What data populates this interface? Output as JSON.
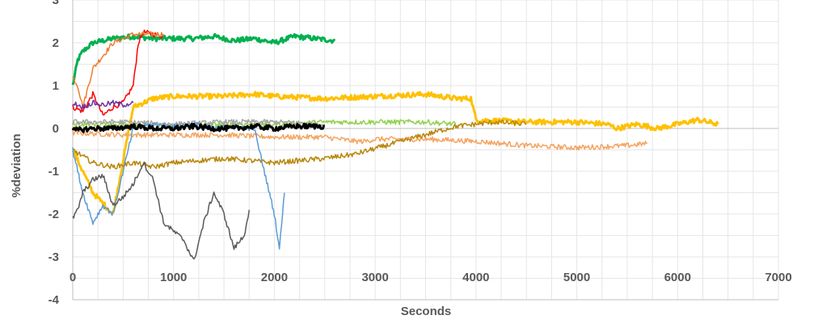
{
  "chart_data": {
    "type": "line",
    "title": "",
    "xlabel": "Seconds",
    "ylabel": "%deviation",
    "xlim": [
      0,
      7000
    ],
    "ylim": [
      -4,
      3
    ],
    "xticks": [
      0,
      1000,
      2000,
      3000,
      4000,
      5000,
      6000,
      7000
    ],
    "yticks": [
      -4,
      -3,
      -2,
      -1,
      0,
      1,
      2,
      3
    ],
    "grid": true,
    "legend": "none",
    "series": [
      {
        "color": "#00B050",
        "x": [
          0,
          50,
          100,
          200,
          400,
          600,
          800,
          900,
          1000,
          1200,
          1400,
          1600,
          1800,
          2000,
          2200,
          2400,
          2600
        ],
        "y": [
          1.0,
          1.6,
          1.8,
          2.0,
          2.1,
          2.15,
          2.1,
          2.1,
          2.1,
          2.1,
          2.15,
          2.05,
          2.1,
          2.0,
          2.15,
          2.1,
          2.05
        ]
      },
      {
        "color": "#FF0000",
        "x": [
          0,
          100,
          200,
          300,
          400,
          500,
          600,
          650,
          700,
          800,
          900
        ],
        "y": [
          0.5,
          0.4,
          0.8,
          0.3,
          0.5,
          0.6,
          1.0,
          2.0,
          2.25,
          2.2,
          2.15
        ]
      },
      {
        "color": "#ED7D31",
        "x": [
          0,
          50,
          100,
          200,
          400,
          500,
          600,
          700,
          900
        ],
        "y": [
          1.2,
          1.0,
          0.5,
          1.4,
          2.0,
          2.1,
          2.2,
          2.2,
          2.2
        ]
      },
      {
        "color": "#FFC000",
        "x": [
          0,
          200,
          400,
          600,
          800,
          1000,
          1500,
          1800,
          2000,
          2500,
          3000,
          3500,
          3800,
          3950,
          4000,
          4500,
          5000,
          5300,
          5400,
          5600,
          5800,
          6000,
          6200,
          6400
        ],
        "y": [
          -0.5,
          -1.5,
          -2.0,
          0.5,
          0.7,
          0.75,
          0.75,
          0.8,
          0.75,
          0.7,
          0.75,
          0.8,
          0.7,
          0.7,
          0.2,
          0.15,
          0.15,
          0.1,
          0.0,
          0.1,
          0.0,
          0.1,
          0.2,
          0.1
        ]
      },
      {
        "color": "#F4A460",
        "x": [
          0,
          500,
          1000,
          1500,
          2000,
          2500,
          2800,
          2900,
          3000,
          3500,
          4000,
          4500,
          5000,
          5500,
          5700
        ],
        "y": [
          -0.1,
          -0.15,
          -0.15,
          -0.15,
          -0.2,
          -0.2,
          -0.3,
          -0.3,
          -0.25,
          -0.25,
          -0.3,
          -0.4,
          -0.45,
          -0.4,
          -0.35
        ]
      },
      {
        "color": "#92D050",
        "x": [
          0,
          500,
          1000,
          1500,
          2000,
          2500,
          3000,
          3500,
          3800
        ],
        "y": [
          0.1,
          0.1,
          0.05,
          0.1,
          0.1,
          0.15,
          0.15,
          0.15,
          0.1
        ]
      },
      {
        "color": "#B8860B",
        "x": [
          0,
          200,
          400,
          600,
          800,
          1000,
          1500,
          2000,
          2500,
          2800,
          3800,
          4000,
          4200,
          4500
        ],
        "y": [
          -0.5,
          -0.8,
          -0.9,
          -0.8,
          -0.9,
          -0.8,
          -0.7,
          -0.8,
          -0.7,
          -0.6,
          0.05,
          0.1,
          0.15,
          0.1
        ]
      },
      {
        "color": "#A5A5A5",
        "x": [
          0,
          500,
          1000,
          1500,
          2000,
          2500
        ],
        "y": [
          0.15,
          0.15,
          0.1,
          0.15,
          0.15,
          0.1
        ]
      },
      {
        "color": "#5B9BD5",
        "x": [
          0,
          100,
          200,
          300,
          400,
          600,
          800,
          1000,
          1200,
          1400,
          1600,
          1800,
          2000,
          2050,
          2100
        ],
        "y": [
          -0.5,
          -1.5,
          -2.2,
          -1.8,
          -2.0,
          0.0,
          0.1,
          0.05,
          0.1,
          0.0,
          0.05,
          0.0,
          -2.0,
          -2.8,
          -1.5
        ]
      },
      {
        "color": "#7030A0",
        "x": [
          0,
          100,
          200,
          300,
          400,
          500,
          600
        ],
        "y": [
          0.6,
          0.5,
          0.6,
          0.55,
          0.6,
          0.55,
          0.6
        ]
      },
      {
        "color": "#595959",
        "x": [
          0,
          50,
          100,
          200,
          300,
          400,
          500,
          600,
          700,
          800,
          900,
          1000,
          1100,
          1200,
          1300,
          1400,
          1500,
          1600,
          1700,
          1750
        ],
        "y": [
          -2.1,
          -1.9,
          -1.5,
          -1.2,
          -1.1,
          -1.8,
          -1.6,
          -1.3,
          -0.8,
          -1.2,
          -2.2,
          -2.4,
          -2.6,
          -3.1,
          -2.2,
          -1.5,
          -2.0,
          -2.8,
          -2.5,
          -1.9
        ]
      },
      {
        "color": "#000000",
        "x": [
          0,
          200,
          400,
          600,
          800,
          1000,
          1200,
          1400,
          1600,
          1800,
          2000,
          2200,
          2400,
          2500
        ],
        "y": [
          -0.05,
          0.0,
          0.0,
          0.05,
          0.0,
          0.0,
          0.05,
          0.0,
          0.0,
          0.05,
          0.0,
          0.05,
          0.05,
          0.05
        ]
      }
    ]
  }
}
